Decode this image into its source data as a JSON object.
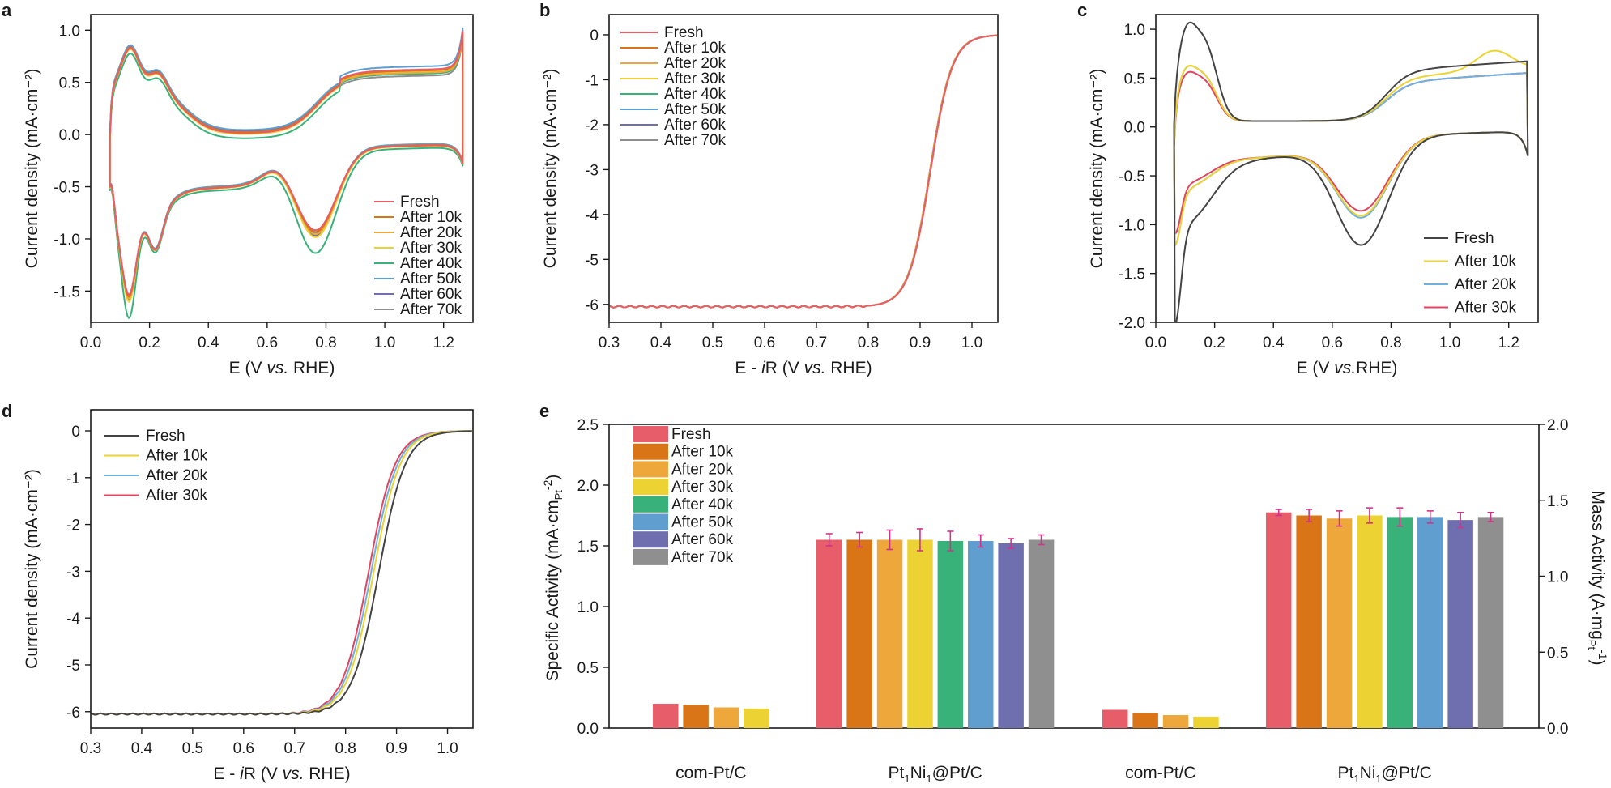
{
  "series_names_8": [
    "Fresh",
    "After 10k",
    "After 20k",
    "After 30k",
    "After 40k",
    "After 50k",
    "After 60k",
    "After 70k"
  ],
  "series_names_4": [
    "Fresh",
    "After 10k",
    "After 20k",
    "After 30k"
  ],
  "colors_8": [
    "#e85d6a",
    "#d97417",
    "#eda73a",
    "#ecd333",
    "#39b27a",
    "#5f9ecf",
    "#6f6fb0",
    "#8f8f8f"
  ],
  "colors_4": [
    "#444444",
    "#ecd333",
    "#6fb0dd",
    "#e04460"
  ],
  "chart_data": [
    {
      "panel": "a",
      "type": "line",
      "xlabel": "E (V vs. RHE)",
      "ylabel": "Current density (mA·cm⁻²)",
      "xlim": [
        0.0,
        1.3
      ],
      "ylim": [
        -1.8,
        1.15
      ],
      "xticks": [
        "0.0",
        "0.2",
        "0.4",
        "0.6",
        "0.8",
        "1.0",
        "1.2"
      ],
      "yticks": [
        "-1.5",
        "-1.0",
        "-0.5",
        "0.0",
        "0.5",
        "1.0"
      ],
      "legend": [
        "Fresh",
        "After 10k",
        "After 20k",
        "After 30k",
        "After 40k",
        "After 50k",
        "After 60k",
        "After 70k"
      ],
      "curve": "cv_ptni",
      "legend_pos": "bottom-right"
    },
    {
      "panel": "b",
      "type": "line",
      "xlabel_pre": "E - ",
      "xlabel_it": "i",
      "xlabel_post": "R (V vs. RHE)",
      "ylabel": "Current density (mA·cm⁻²)",
      "xlim": [
        0.3,
        1.05
      ],
      "ylim": [
        -6.4,
        0.45
      ],
      "xticks": [
        "0.3",
        "0.4",
        "0.5",
        "0.6",
        "0.7",
        "0.8",
        "0.9",
        "1.0"
      ],
      "yticks": [
        "-6",
        "-5",
        "-4",
        "-3",
        "-2",
        "-1",
        "0"
      ],
      "legend": [
        "Fresh",
        "After 10k",
        "After 20k",
        "After 30k",
        "After 40k",
        "After 50k",
        "After 60k",
        "After 70k"
      ],
      "curve": "lsv_ptni",
      "half_wave_potentials": [
        0.925,
        0.925,
        0.924,
        0.925,
        0.924,
        0.925,
        0.924,
        0.925
      ],
      "legend_pos": "top-left"
    },
    {
      "panel": "c",
      "type": "line",
      "xlabel": "E (V vs.RHE)",
      "ylabel": "Current density (mA·cm⁻²)",
      "xlim": [
        0.0,
        1.3
      ],
      "ylim": [
        -2.0,
        1.15
      ],
      "xticks": [
        "0.0",
        "0.2",
        "0.4",
        "0.6",
        "0.8",
        "1.0",
        "1.2"
      ],
      "yticks": [
        "-2.0",
        "-1.5",
        "-1.0",
        "-0.5",
        "0.0",
        "0.5",
        "1.0"
      ],
      "legend": [
        "Fresh",
        "After 10k",
        "After 20k",
        "After 30k"
      ],
      "curve": "cv_compt",
      "legend_pos": "bottom-right"
    },
    {
      "panel": "d",
      "type": "line",
      "xlabel_pre": "E - ",
      "xlabel_it": "i",
      "xlabel_post": "R (V vs. RHE)",
      "ylabel": "Current density (mA·cm⁻²)",
      "xlim": [
        0.3,
        1.05
      ],
      "ylim": [
        -6.35,
        0.45
      ],
      "xticks": [
        "0.3",
        "0.4",
        "0.5",
        "0.6",
        "0.7",
        "0.8",
        "0.9",
        "1.0"
      ],
      "yticks": [
        "-6",
        "-5",
        "-4",
        "-3",
        "-2",
        "-1",
        "0"
      ],
      "legend": [
        "Fresh",
        "After 10k",
        "After 20k",
        "After 30k"
      ],
      "curve": "lsv_compt",
      "half_wave_potentials": [
        0.875,
        0.865,
        0.86,
        0.855
      ],
      "legend_pos": "top-left"
    },
    {
      "panel": "e",
      "type": "bar",
      "ylabel_left": "Specific Activity (mA·cm",
      "ylabel_left_sub": "Pt",
      "ylabel_left_sup": "-2",
      "ylabel_left_close": ")",
      "ylabel_right": "Mass Activity (A·mg",
      "ylabel_right_sub": "Pt",
      "ylabel_right_sup": "-1",
      "ylabel_right_close": ")",
      "ylim_left": [
        0,
        2.5
      ],
      "ylim_right": [
        0,
        2.0
      ],
      "yticks_left": [
        "0.0",
        "0.5",
        "1.0",
        "1.5",
        "2.0",
        "2.5"
      ],
      "yticks_right": [
        "0.0",
        "0.5",
        "1.0",
        "1.5",
        "2.0"
      ],
      "legend": [
        "Fresh",
        "After 10k",
        "After 20k",
        "After 30k",
        "After 40k",
        "After 50k",
        "After 60k",
        "After 70k"
      ],
      "categories": [
        {
          "label": "com-Pt/C",
          "axis": "left",
          "values": [
            0.2,
            0.19,
            0.17,
            0.16
          ],
          "errors": [
            0,
            0,
            0,
            0
          ]
        },
        {
          "label_pre": "Pt",
          "label_sub1": "1",
          "label_mid": "Ni",
          "label_sub2": "1",
          "label_post": "@Pt/C",
          "axis": "left",
          "values": [
            1.55,
            1.55,
            1.55,
            1.55,
            1.54,
            1.54,
            1.52,
            1.55
          ],
          "errors": [
            0.05,
            0.06,
            0.08,
            0.09,
            0.08,
            0.05,
            0.04,
            0.04
          ]
        },
        {
          "label": "com-Pt/C",
          "axis": "right",
          "values": [
            0.12,
            0.1,
            0.085,
            0.075
          ],
          "errors": [
            0,
            0,
            0,
            0
          ]
        },
        {
          "label_pre": "Pt",
          "label_sub1": "1",
          "label_mid": "Ni",
          "label_sub2": "1",
          "label_post": "@Pt/C",
          "axis": "right",
          "values": [
            1.42,
            1.4,
            1.38,
            1.4,
            1.39,
            1.39,
            1.37,
            1.39
          ],
          "errors": [
            0.02,
            0.04,
            0.05,
            0.05,
            0.06,
            0.04,
            0.05,
            0.03
          ]
        }
      ]
    }
  ]
}
